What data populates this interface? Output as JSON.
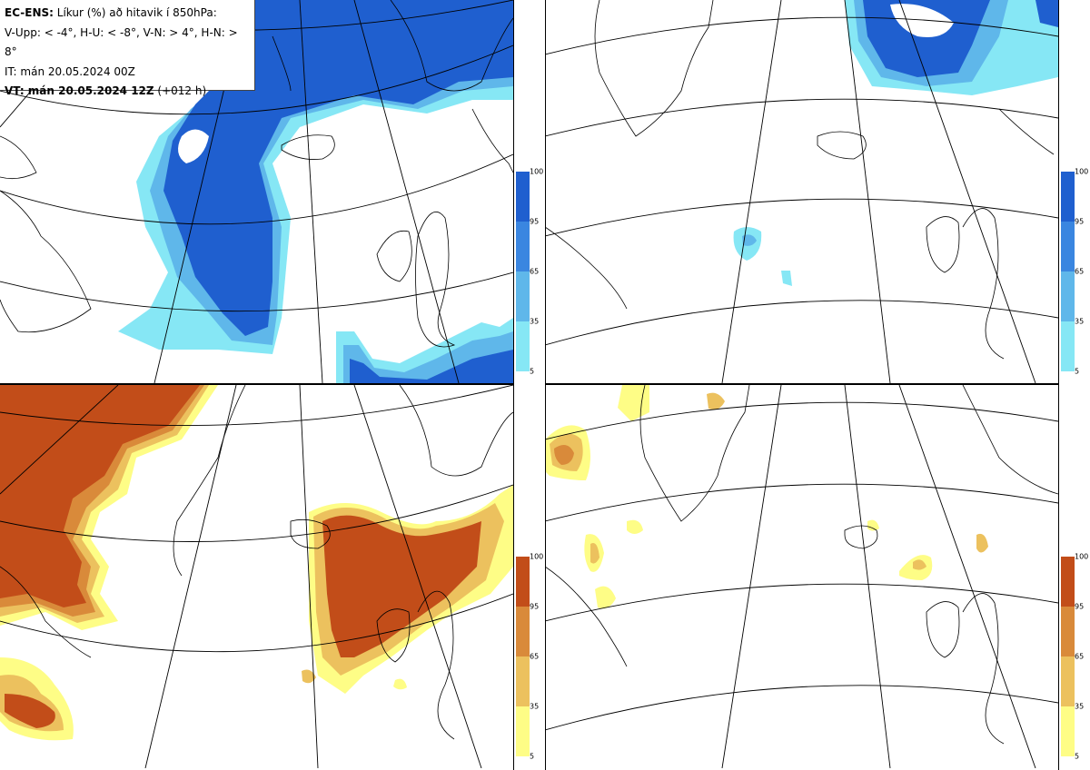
{
  "header": {
    "line1_bold": "EC-ENS:",
    "line1_rest": " Líkur (%) að hitavik í 850hPa:",
    "line2": "V-Upp: < -4°, H-U: < -8°, V-N: > 4°, H-N: > 8°",
    "line3": "IT: mán 20.05.2024 00Z",
    "line4_bold": "VT: mán 20.05.2024 12Z",
    "line4_rest": " (+012 h)"
  },
  "colorbar": {
    "ticks": [
      "100",
      "95",
      "65",
      "35",
      "5"
    ],
    "cold_colors": [
      "#1f5fcf",
      "#3a86e0",
      "#5fb7ea",
      "#86e7f5"
    ],
    "warm_colors": [
      "#c24d19",
      "#d98a3a",
      "#ecc15e",
      "#fefd86"
    ]
  },
  "panels": [
    {
      "name": "V-Upp",
      "threshold": "< -4°",
      "scheme": "cold"
    },
    {
      "name": "H-U",
      "threshold": "< -8°",
      "scheme": "cold"
    },
    {
      "name": "V-N",
      "threshold": "> 4°",
      "scheme": "warm"
    },
    {
      "name": "H-N",
      "threshold": "> 8°",
      "scheme": "warm"
    }
  ]
}
